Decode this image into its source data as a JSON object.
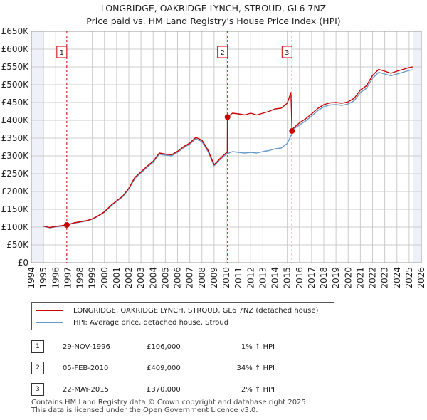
{
  "title": "LONGRIDGE, OAKRIDGE LYNCH, STROUD, GL6 7NZ",
  "subtitle": "Price paid vs. HM Land Registry's House Price Index (HPI)",
  "colors": {
    "property": "#cc0000",
    "hpi": "#6699cc",
    "grid": "#cccccc",
    "shade": "#eef2f8",
    "marker_line": "#cc0000"
  },
  "legend": {
    "property_label": "LONGRIDGE, OAKRIDGE LYNCH, STROUD, GL6 7NZ (detached house)",
    "hpi_label": "HPI: Average price, detached house, Stroud"
  },
  "sales": [
    {
      "num": "1",
      "date": "29-NOV-1996",
      "price": "£106,000",
      "hpi": "1% ↑ HPI"
    },
    {
      "num": "2",
      "date": "05-FEB-2010",
      "price": "£409,000",
      "hpi": "34% ↑ HPI"
    },
    {
      "num": "3",
      "date": "22-MAY-2015",
      "price": "£370,000",
      "hpi": "2% ↑ HPI"
    }
  ],
  "footer": {
    "line1": "Contains HM Land Registry data © Crown copyright and database right 2025.",
    "line2": "This data is licensed under the Open Government Licence v3.0."
  },
  "chart_data": {
    "type": "line",
    "title": "LONGRIDGE, OAKRIDGE LYNCH, STROUD, GL6 7NZ",
    "subtitle": "Price paid vs. HM Land Registry's House Price Index (HPI)",
    "xlim": [
      1994,
      2026
    ],
    "ylim": [
      0,
      650000
    ],
    "x_ticks": [
      1994,
      1995,
      1996,
      1997,
      1998,
      1999,
      2000,
      2001,
      2002,
      2003,
      2004,
      2005,
      2006,
      2007,
      2008,
      2009,
      2010,
      2011,
      2012,
      2013,
      2014,
      2015,
      2016,
      2017,
      2018,
      2019,
      2020,
      2021,
      2022,
      2023,
      2024,
      2025,
      2026
    ],
    "y_ticks": [
      0,
      50000,
      100000,
      150000,
      200000,
      250000,
      300000,
      350000,
      400000,
      450000,
      500000,
      550000,
      600000,
      650000
    ],
    "y_tick_labels": [
      "£0",
      "£50K",
      "£100K",
      "£150K",
      "£200K",
      "£250K",
      "£300K",
      "£350K",
      "£400K",
      "£450K",
      "£500K",
      "£550K",
      "£600K",
      "£650K"
    ],
    "data_range": [
      1995.0,
      2025.3
    ],
    "grid": true,
    "legend_position": "below",
    "sale_markers": [
      {
        "label": "1",
        "x": 1996.91,
        "y": 106000
      },
      {
        "label": "2",
        "x": 2010.1,
        "y": 409000
      },
      {
        "label": "3",
        "x": 2015.39,
        "y": 370000
      }
    ],
    "series": [
      {
        "name": "HPI: Average price, detached house, Stroud",
        "x": [
          1995.0,
          1995.5,
          1996.0,
          1996.5,
          1996.91,
          1997.5,
          1998.0,
          1998.5,
          1999.0,
          1999.5,
          2000.0,
          2000.5,
          2001.0,
          2001.5,
          2002.0,
          2002.5,
          2003.0,
          2003.5,
          2004.0,
          2004.5,
          2005.0,
          2005.5,
          2006.0,
          2006.5,
          2007.0,
          2007.5,
          2008.0,
          2008.5,
          2009.0,
          2009.5,
          2010.0,
          2010.5,
          2011.0,
          2011.5,
          2012.0,
          2012.5,
          2013.0,
          2013.5,
          2014.0,
          2014.5,
          2015.0,
          2015.39,
          2015.5,
          2016.0,
          2016.5,
          2017.0,
          2017.5,
          2018.0,
          2018.5,
          2019.0,
          2019.5,
          2020.0,
          2020.5,
          2021.0,
          2021.5,
          2022.0,
          2022.5,
          2023.0,
          2023.5,
          2024.0,
          2024.5,
          2025.0,
          2025.3
        ],
        "y": [
          102000,
          98000,
          101000,
          103000,
          105000,
          111000,
          114000,
          117000,
          122000,
          131000,
          142000,
          158000,
          172000,
          185000,
          207000,
          237000,
          252000,
          268000,
          282000,
          305000,
          302000,
          300000,
          310000,
          323000,
          333000,
          348000,
          340000,
          312000,
          272000,
          290000,
          305000,
          312000,
          310000,
          308000,
          310000,
          308000,
          312000,
          315000,
          320000,
          322000,
          335000,
          363000,
          375000,
          387000,
          398000,
          412000,
          427000,
          438000,
          443000,
          444000,
          442000,
          446000,
          455000,
          478000,
          490000,
          518000,
          535000,
          530000,
          525000,
          530000,
          535000,
          540000,
          542000
        ]
      },
      {
        "name": "LONGRIDGE, OAKRIDGE LYNCH, STROUD, GL6 7NZ (detached house)",
        "x": [
          1995.0,
          1995.5,
          1996.0,
          1996.5,
          1996.91,
          1997.5,
          1998.0,
          1998.5,
          1999.0,
          1999.5,
          2000.0,
          2000.5,
          2001.0,
          2001.5,
          2002.0,
          2002.5,
          2003.0,
          2003.5,
          2004.0,
          2004.5,
          2005.0,
          2005.5,
          2006.0,
          2006.5,
          2007.0,
          2007.5,
          2008.0,
          2008.5,
          2009.0,
          2009.5,
          2010.0,
          2010.09,
          2010.1,
          2010.5,
          2011.0,
          2011.5,
          2012.0,
          2012.5,
          2013.0,
          2013.5,
          2014.0,
          2014.5,
          2015.0,
          2015.3,
          2015.39,
          2015.5,
          2016.0,
          2016.5,
          2017.0,
          2017.5,
          2018.0,
          2018.5,
          2019.0,
          2019.5,
          2020.0,
          2020.5,
          2021.0,
          2021.5,
          2022.0,
          2022.5,
          2023.0,
          2023.5,
          2024.0,
          2024.5,
          2025.0,
          2025.3
        ],
        "y": [
          103000,
          99000,
          102000,
          104000,
          106000,
          112000,
          115000,
          118000,
          123000,
          132000,
          143000,
          160000,
          174000,
          187000,
          209000,
          240000,
          255000,
          271000,
          285000,
          308000,
          305000,
          303000,
          313000,
          326000,
          336000,
          352000,
          344000,
          316000,
          275000,
          293000,
          309000,
          309000,
          409000,
          420000,
          418000,
          415000,
          420000,
          415000,
          420000,
          425000,
          432000,
          434000,
          448000,
          478000,
          370000,
          378000,
          393000,
          404000,
          418000,
          433000,
          444000,
          449000,
          450000,
          448000,
          452000,
          462000,
          485000,
          497000,
          526000,
          543000,
          538000,
          532000,
          538000,
          543000,
          548000,
          550000
        ]
      }
    ]
  }
}
